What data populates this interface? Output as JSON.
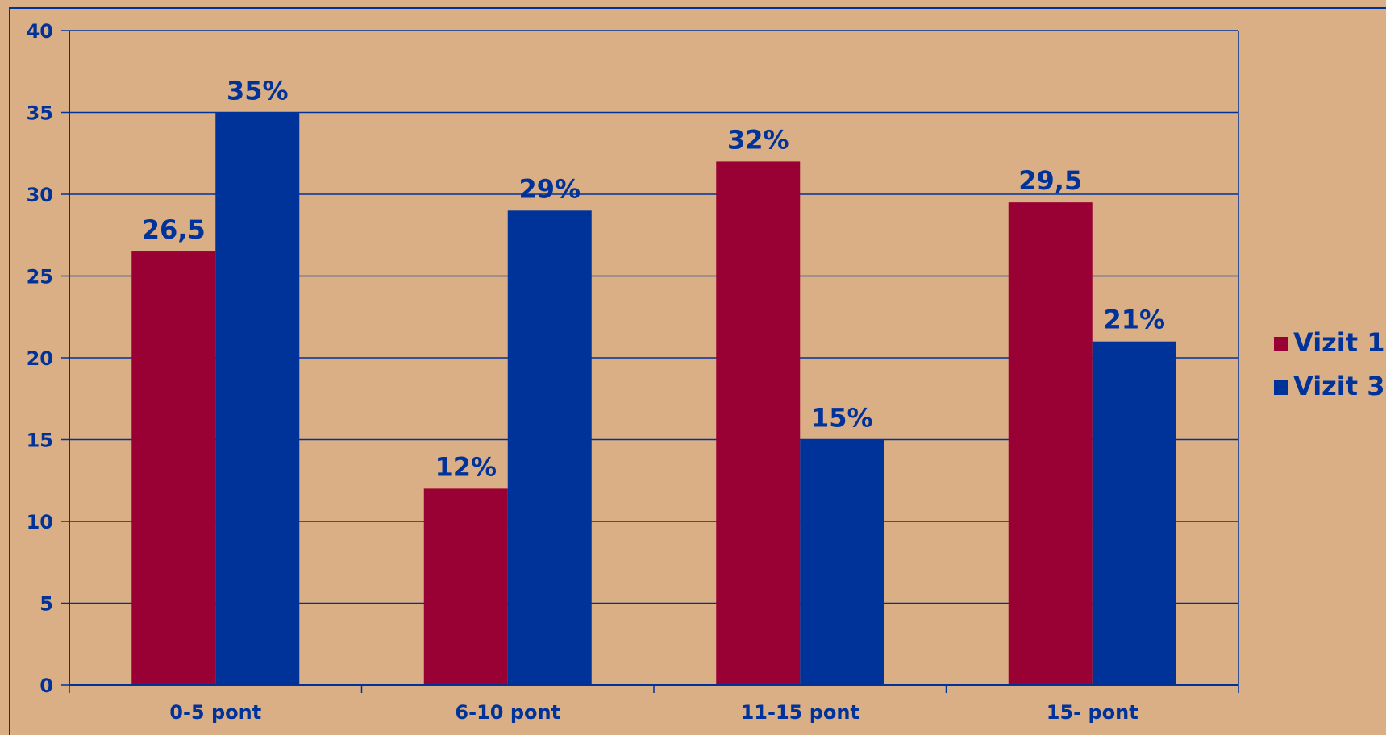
{
  "chart_data": {
    "type": "bar",
    "title": "",
    "xlabel": "",
    "ylabel": "",
    "categories": [
      "0-5 pont",
      "6-10 pont",
      "11-15 pont",
      "15- pont"
    ],
    "series": [
      {
        "name": "Vizit 1",
        "color": "#990033",
        "values": [
          26.5,
          12,
          32,
          29.5
        ],
        "labels": [
          "26,5",
          "12%",
          "32%",
          "29,5"
        ]
      },
      {
        "name": "Vizit 3",
        "color": "#003399",
        "values": [
          35,
          29,
          15,
          21
        ],
        "labels": [
          "35%",
          "29%",
          "15%",
          "21%"
        ]
      }
    ],
    "ylim": [
      0,
      40
    ],
    "yticks": [
      "0",
      "5",
      "10",
      "15",
      "20",
      "25",
      "30",
      "35",
      "40"
    ],
    "grid": true,
    "legend": "right",
    "background": "#dbaf85",
    "axis_color": "#003399"
  }
}
